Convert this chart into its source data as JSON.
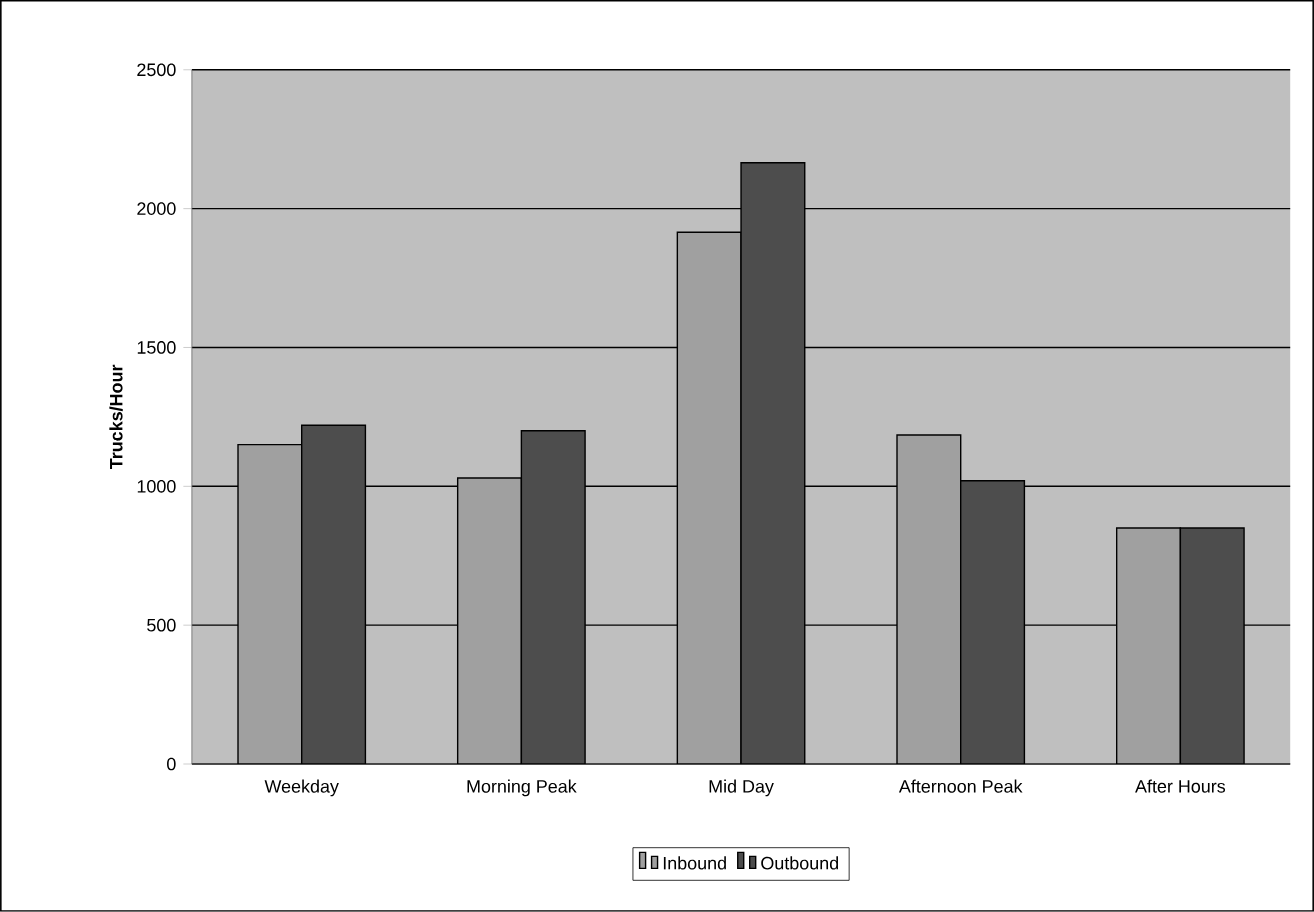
{
  "chart_data": {
    "type": "bar",
    "ylabel": "Trucks/Hour",
    "categories": [
      "Weekday",
      "Morning Peak",
      "Mid Day",
      "Afternoon Peak",
      "After Hours"
    ],
    "series": [
      {
        "name": "Inbound",
        "color": "#a0a0a0",
        "values": [
          1150,
          1030,
          1915,
          1185,
          850
        ]
      },
      {
        "name": "Outbound",
        "color": "#4d4d4d",
        "values": [
          1220,
          1200,
          2165,
          1020,
          850
        ]
      }
    ],
    "ylim": [
      0,
      2500
    ],
    "yticks": [
      0,
      500,
      1000,
      1500,
      2000,
      2500
    ],
    "grid": "y",
    "legend": "bottom"
  }
}
